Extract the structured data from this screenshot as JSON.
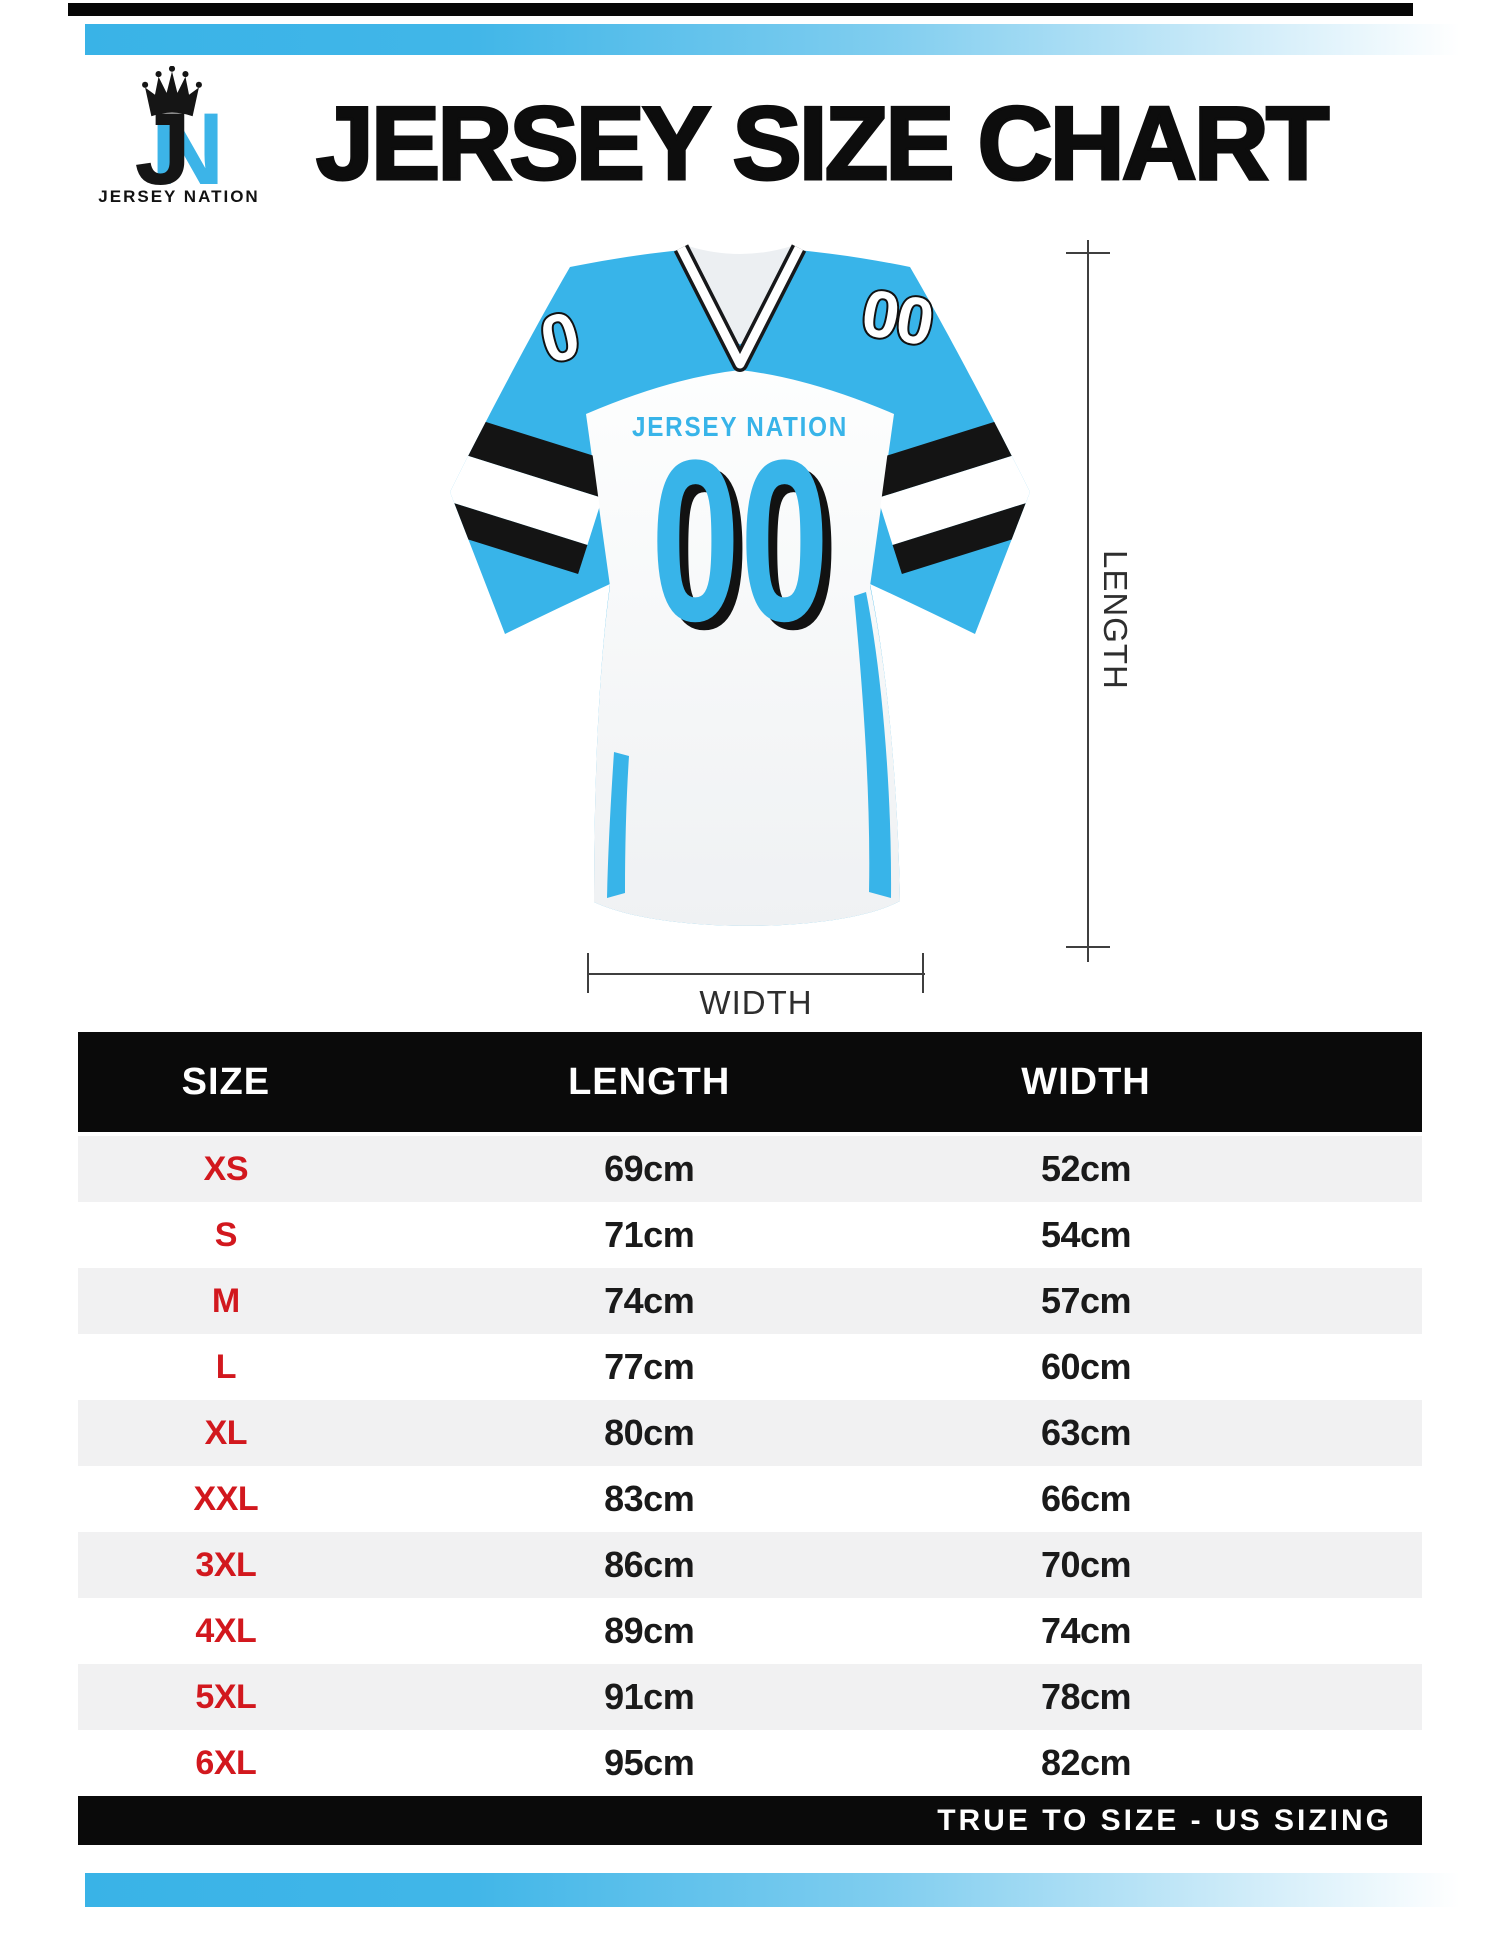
{
  "brand": {
    "logo_j": "J",
    "logo_n": "N",
    "caption": "JERSEY NATION"
  },
  "title": "JERSEY SIZE CHART",
  "jersey": {
    "chest_text": "JERSEY NATION",
    "chest_number": "00",
    "left_shoulder_number": "0",
    "right_shoulder_number": "00"
  },
  "measure": {
    "length_label": "LENGTH",
    "width_label": "WIDTH"
  },
  "table": {
    "headers": [
      "SIZE",
      "LENGTH",
      "WIDTH"
    ],
    "rows": [
      {
        "size": "XS",
        "length": "69cm",
        "width": "52cm"
      },
      {
        "size": "S",
        "length": "71cm",
        "width": "54cm"
      },
      {
        "size": "M",
        "length": "74cm",
        "width": "57cm"
      },
      {
        "size": "L",
        "length": "77cm",
        "width": "60cm"
      },
      {
        "size": "XL",
        "length": "80cm",
        "width": "63cm"
      },
      {
        "size": "XXL",
        "length": "83cm",
        "width": "66cm"
      },
      {
        "size": "3XL",
        "length": "86cm",
        "width": "70cm"
      },
      {
        "size": "4XL",
        "length": "89cm",
        "width": "74cm"
      },
      {
        "size": "5XL",
        "length": "91cm",
        "width": "78cm"
      },
      {
        "size": "6XL",
        "length": "95cm",
        "width": "82cm"
      }
    ]
  },
  "footer": {
    "note": "TRUE TO SIZE - US SIZING"
  },
  "colors": {
    "blue": "#38B4E9",
    "red": "#D2181E",
    "black": "#0a0a0a",
    "row_gray": "#F1F1F2"
  }
}
